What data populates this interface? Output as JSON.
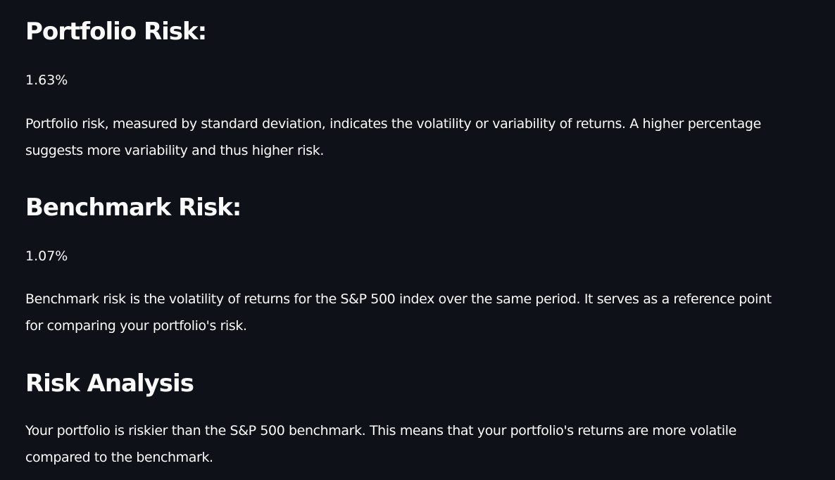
{
  "portfolio_risk": {
    "heading": "Portfolio Risk:",
    "value": "1.63%",
    "description": "Portfolio risk, measured by standard deviation, indicates the volatility or variability of returns. A higher percentage suggests more variability and thus higher risk."
  },
  "benchmark_risk": {
    "heading": "Benchmark Risk:",
    "value": "1.07%",
    "description": "Benchmark risk is the volatility of returns for the S&P 500 index over the same period. It serves as a reference point for comparing your portfolio's risk."
  },
  "risk_analysis": {
    "heading": "Risk Analysis",
    "description": "Your portfolio is riskier than the S&P 500 benchmark. This means that your portfolio's returns are more volatile compared to the benchmark."
  },
  "colors": {
    "background": "#0e1117",
    "text": "#fafafa"
  }
}
